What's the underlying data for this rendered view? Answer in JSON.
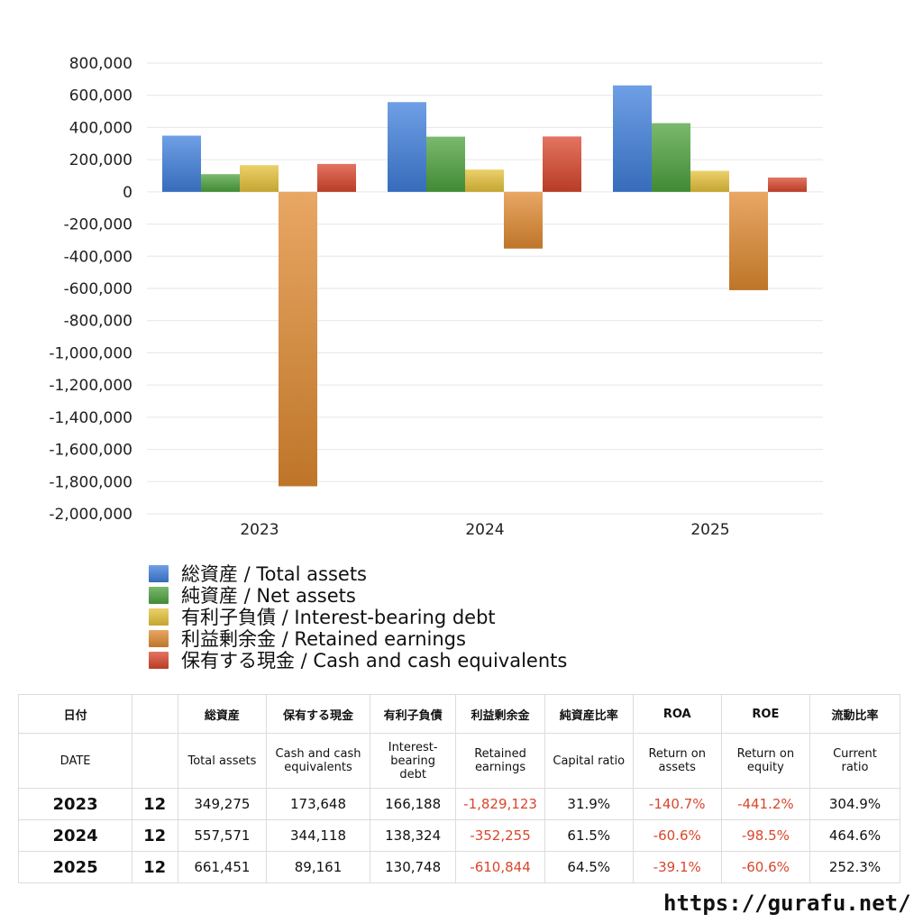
{
  "chart_data": {
    "type": "bar",
    "categories": [
      "2023",
      "2024",
      "2025"
    ],
    "ylim": [
      -2000000,
      800000
    ],
    "yticks": [
      800000,
      600000,
      400000,
      200000,
      0,
      -200000,
      -400000,
      -600000,
      -800000,
      -1000000,
      -1200000,
      -1400000,
      -1600000,
      -1800000,
      -2000000
    ],
    "ytick_labels": [
      "800,000",
      "600,000",
      "400,000",
      "200,000",
      "0",
      "-200,000",
      "-400,000",
      "-600,000",
      "-800,000",
      "-1,000,000",
      "-1,200,000",
      "-1,400,000",
      "-1,600,000",
      "-1,800,000",
      "-2,000,000"
    ],
    "grid": true,
    "legend_position": "bottom-left",
    "series": [
      {
        "name": "総資産 / Total assets",
        "color": "#3f7fdc",
        "values": [
          349275,
          557571,
          661451
        ]
      },
      {
        "name": "純資産 / Net assets",
        "color": "#4da23e",
        "values": [
          110000,
          343000,
          427000
        ]
      },
      {
        "name": "有利子負債 / Interest-bearing debt",
        "color": "#e5c23a",
        "values": [
          166188,
          138324,
          130748
        ]
      },
      {
        "name": "利益剰余金 / Retained earnings",
        "color": "#e08a30",
        "values": [
          -1829123,
          -352255,
          -610844
        ]
      },
      {
        "name": "保有する現金 /  Cash and cash equivalents",
        "color": "#d9462c",
        "values": [
          173648,
          344118,
          89161
        ]
      }
    ]
  },
  "table": {
    "header_ja": [
      "日付",
      "",
      "総資産",
      "保有する現金",
      "有利子負債",
      "利益剰余金",
      "純資産比率",
      "ROA",
      "ROE",
      "流動比率"
    ],
    "header_en": [
      "DATE",
      "",
      "Total assets",
      "Cash and cash\nequivalents",
      "Interest-\nbearing\ndebt",
      "Retained\nearnings",
      "Capital ratio",
      "Return on\nassets",
      "Return on\nequity",
      "Current\nratio"
    ],
    "rows": [
      {
        "year": "2023",
        "month": "12",
        "cells": [
          "349,275",
          "173,648",
          "166,188",
          "-1,829,123",
          "31.9%",
          "-140.7%",
          "-441.2%",
          "304.9%"
        ]
      },
      {
        "year": "2024",
        "month": "12",
        "cells": [
          "557,571",
          "344,118",
          "138,324",
          "-352,255",
          "61.5%",
          "-60.6%",
          "-98.5%",
          "464.6%"
        ]
      },
      {
        "year": "2025",
        "month": "12",
        "cells": [
          "661,451",
          "89,161",
          "130,748",
          "-610,844",
          "64.5%",
          "-39.1%",
          "-60.6%",
          "252.3%"
        ]
      }
    ]
  },
  "footer": {
    "url": "https://gurafu.net/"
  }
}
